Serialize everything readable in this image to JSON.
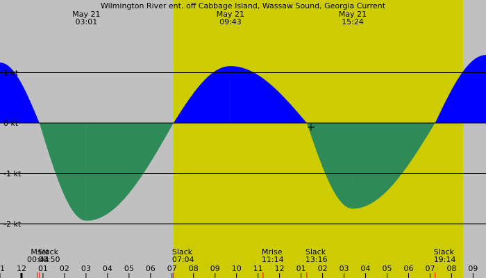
{
  "chart_data": {
    "type": "area",
    "title": "Wilmington River ent. off Cabbage Island, Wassaw Sound, Georgia Current",
    "unit": "kt",
    "x_hour_range": [
      -1,
      21.6
    ],
    "ylim": [
      -2.4,
      1.4
    ],
    "grid": true,
    "daylight": {
      "start": "07:04",
      "end": "20:32"
    },
    "y_ticks": [
      {
        "value": 1,
        "label": "1 kt"
      },
      {
        "value": 0,
        "label": "0 kt"
      },
      {
        "value": -1,
        "label": "-1 kt"
      },
      {
        "value": -2,
        "label": "-2 kt"
      }
    ],
    "x_tick_labels": [
      "11",
      "12",
      "01",
      "02",
      "03",
      "04",
      "05",
      "06",
      "07",
      "08",
      "09",
      "10",
      "11",
      "12",
      "01",
      "02",
      "03",
      "04",
      "05",
      "06",
      "07",
      "08",
      "09"
    ],
    "x_tick_hours": [
      -1,
      0,
      1,
      2,
      3,
      4,
      5,
      6,
      7,
      8,
      9,
      10,
      11,
      12,
      13,
      14,
      15,
      16,
      17,
      18,
      19,
      20,
      21
    ],
    "top_labels": [
      {
        "date": "May 21",
        "time": "03:01"
      },
      {
        "date": "May 21",
        "time": "09:43"
      },
      {
        "date": "May 21",
        "time": "15:24"
      }
    ],
    "events": [
      {
        "name": "Mset",
        "time": "00:44"
      },
      {
        "name": "Slack",
        "time": "00:50"
      },
      {
        "name": "Slack",
        "time": "07:04"
      },
      {
        "name": "Mrise",
        "time": "11:14"
      },
      {
        "name": "Slack",
        "time": "13:16"
      },
      {
        "name": "Slack",
        "time": "19:14"
      }
    ],
    "current_points": [
      {
        "time": "-01:00",
        "value": 1.2
      },
      {
        "time": "00:50",
        "value": 0
      },
      {
        "time": "03:01",
        "value": -1.94
      },
      {
        "time": "07:04",
        "value": 0
      },
      {
        "time": "09:43",
        "value": 1.13
      },
      {
        "time": "13:16",
        "value": 0
      },
      {
        "time": "15:24",
        "value": -1.7
      },
      {
        "time": "19:14",
        "value": 0
      },
      {
        "time": "21:36",
        "value": 1.35
      }
    ],
    "colors": {
      "flood": "#0000ff",
      "ebb": "#2e8b57",
      "daylight": "#cccc00",
      "night": "#c0c0c0",
      "moon_mark": "#ff0000"
    }
  }
}
